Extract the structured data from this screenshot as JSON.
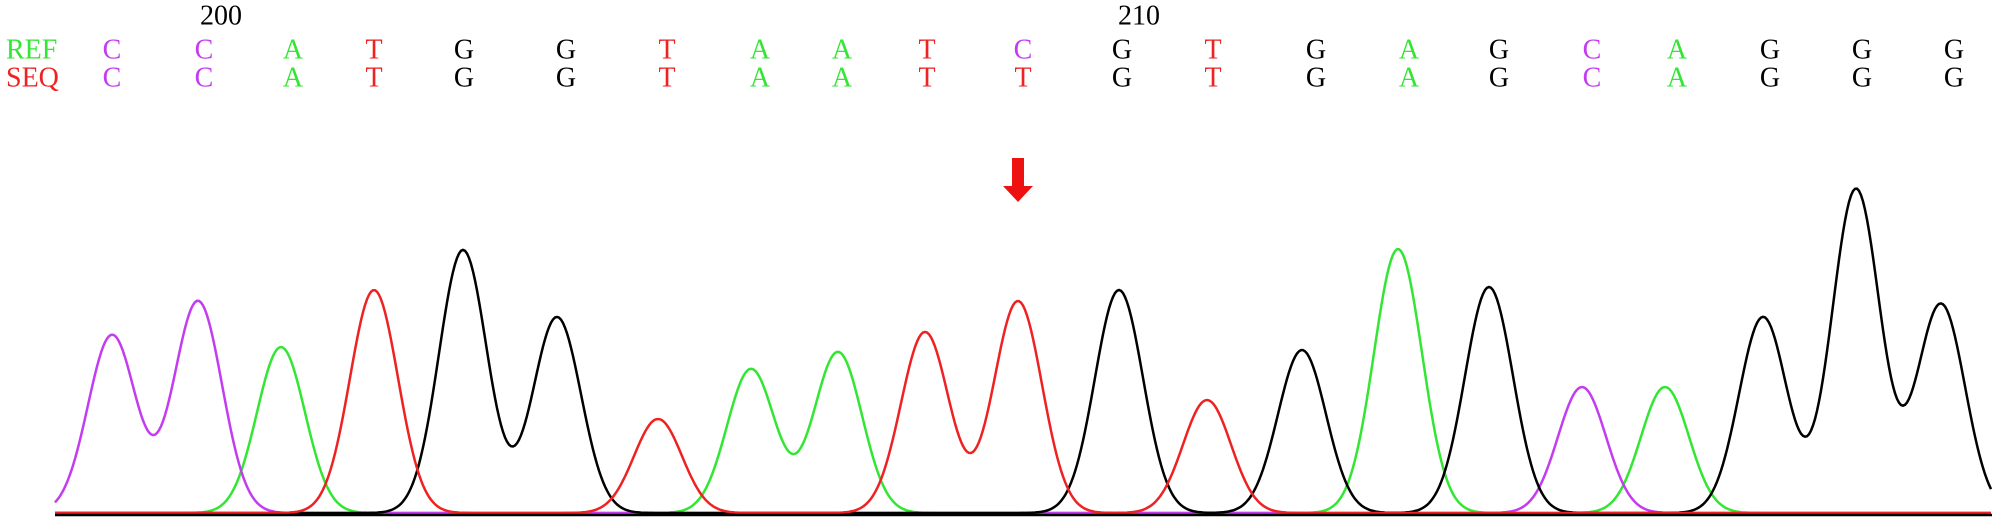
{
  "ref_label": "REF",
  "seq_label": "SEQ",
  "positions": [
    "200",
    "210"
  ],
  "ref": [
    "C",
    "C",
    "A",
    "T",
    "G",
    "G",
    "T",
    "A",
    "A",
    "T",
    "C",
    "G",
    "T",
    "G",
    "A",
    "G",
    "C",
    "A",
    "G",
    "G",
    "G"
  ],
  "seq": [
    "C",
    "C",
    "A",
    "T",
    "G",
    "G",
    "T",
    "A",
    "A",
    "T",
    "T",
    "G",
    "T",
    "G",
    "A",
    "G",
    "C",
    "A",
    "G",
    "G",
    "G"
  ],
  "base_colors": {
    "A": "#33e633",
    "C": "#c43cf0",
    "G": "#000000",
    "T": "#ee2222"
  }
}
